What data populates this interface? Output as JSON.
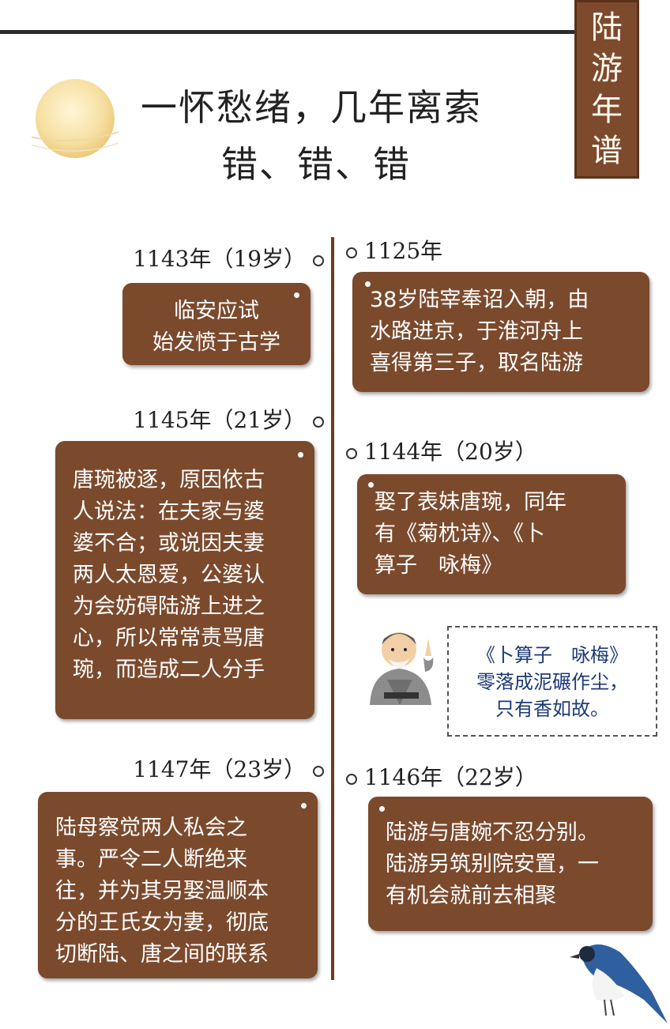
{
  "badge": {
    "chars": [
      "陆",
      "游",
      "年",
      "谱"
    ]
  },
  "title": {
    "line1": "一怀愁绪，几年离索",
    "line2": "错、错、错"
  },
  "events_left": [
    {
      "year": "1143年（19岁）",
      "lines": [
        "临安应试",
        "始发愤于古学"
      ]
    },
    {
      "year": "1145年（21岁）",
      "lines": [
        "唐琬被逐，原因依古",
        "人说法：在夫家与婆",
        "婆不合；或说因夫妻",
        "两人太恩爱，公婆认",
        "为会妨碍陆游上进之",
        "心，所以常常责骂唐",
        "琬，而造成二人分手"
      ]
    },
    {
      "year": "1147年（23岁）",
      "lines": [
        "陆母察觉两人私会之",
        "事。严令二人断绝来",
        "往，并为其另娶温顺本",
        "分的王氏女为妻，彻底",
        "切断陆、唐之间的联系"
      ]
    }
  ],
  "events_right": [
    {
      "year": "1125年",
      "lines": [
        "38岁陆宰奉诏入朝，由",
        "水路进京，于淮河舟上",
        "喜得第三子，取名陆游"
      ]
    },
    {
      "year": "1144年（20岁）",
      "lines": [
        "娶了表妹唐琬，同年",
        "有《菊枕诗》、《卜",
        "算子　咏梅》"
      ]
    },
    {
      "year": "1146年（22岁）",
      "lines": [
        "陆游与唐婉不忍分别。",
        "陆游另筑别院安置，一",
        "有机会就前去相聚"
      ]
    }
  ],
  "quote": {
    "lines": [
      "《卜算子　咏梅》",
      "零落成泥碾作尘，",
      "只有香如故。"
    ]
  },
  "colors": {
    "box": "#7b4a2d",
    "badge": "#7d4a2e",
    "timeline": "#6b3d22",
    "quote_text": "#1d3a78"
  }
}
